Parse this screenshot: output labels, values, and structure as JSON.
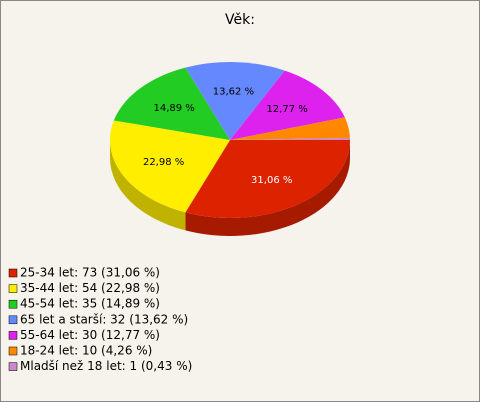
{
  "chart_data": {
    "type": "pie",
    "title": "Věk:",
    "categories": [
      "25-34 let: 73 (31,06 %)",
      "35-44 let: 54 (22,98 %)",
      "45-54 let: 35 (14,89 %)",
      "65 let a starší: 32 (13,62 %)",
      "55-64 let: 30 (12,77 %)",
      "18-24 let: 10 (4,26 %)",
      "Mladší než 18 let: 1 (0,43 %)"
    ],
    "values": [
      31.06,
      22.98,
      14.89,
      13.62,
      12.77,
      4.26,
      0.43
    ],
    "value_labels": [
      "31,06 %",
      "22,98 %",
      "14,89 %",
      "13,62 %",
      "12,77 %",
      null,
      null
    ],
    "colors": [
      "#dd2200",
      "#ffee00",
      "#22cc22",
      "#6688ff",
      "#dd22ee",
      "#ff8800",
      "#cc88cc"
    ],
    "legend": "bottom-left"
  }
}
